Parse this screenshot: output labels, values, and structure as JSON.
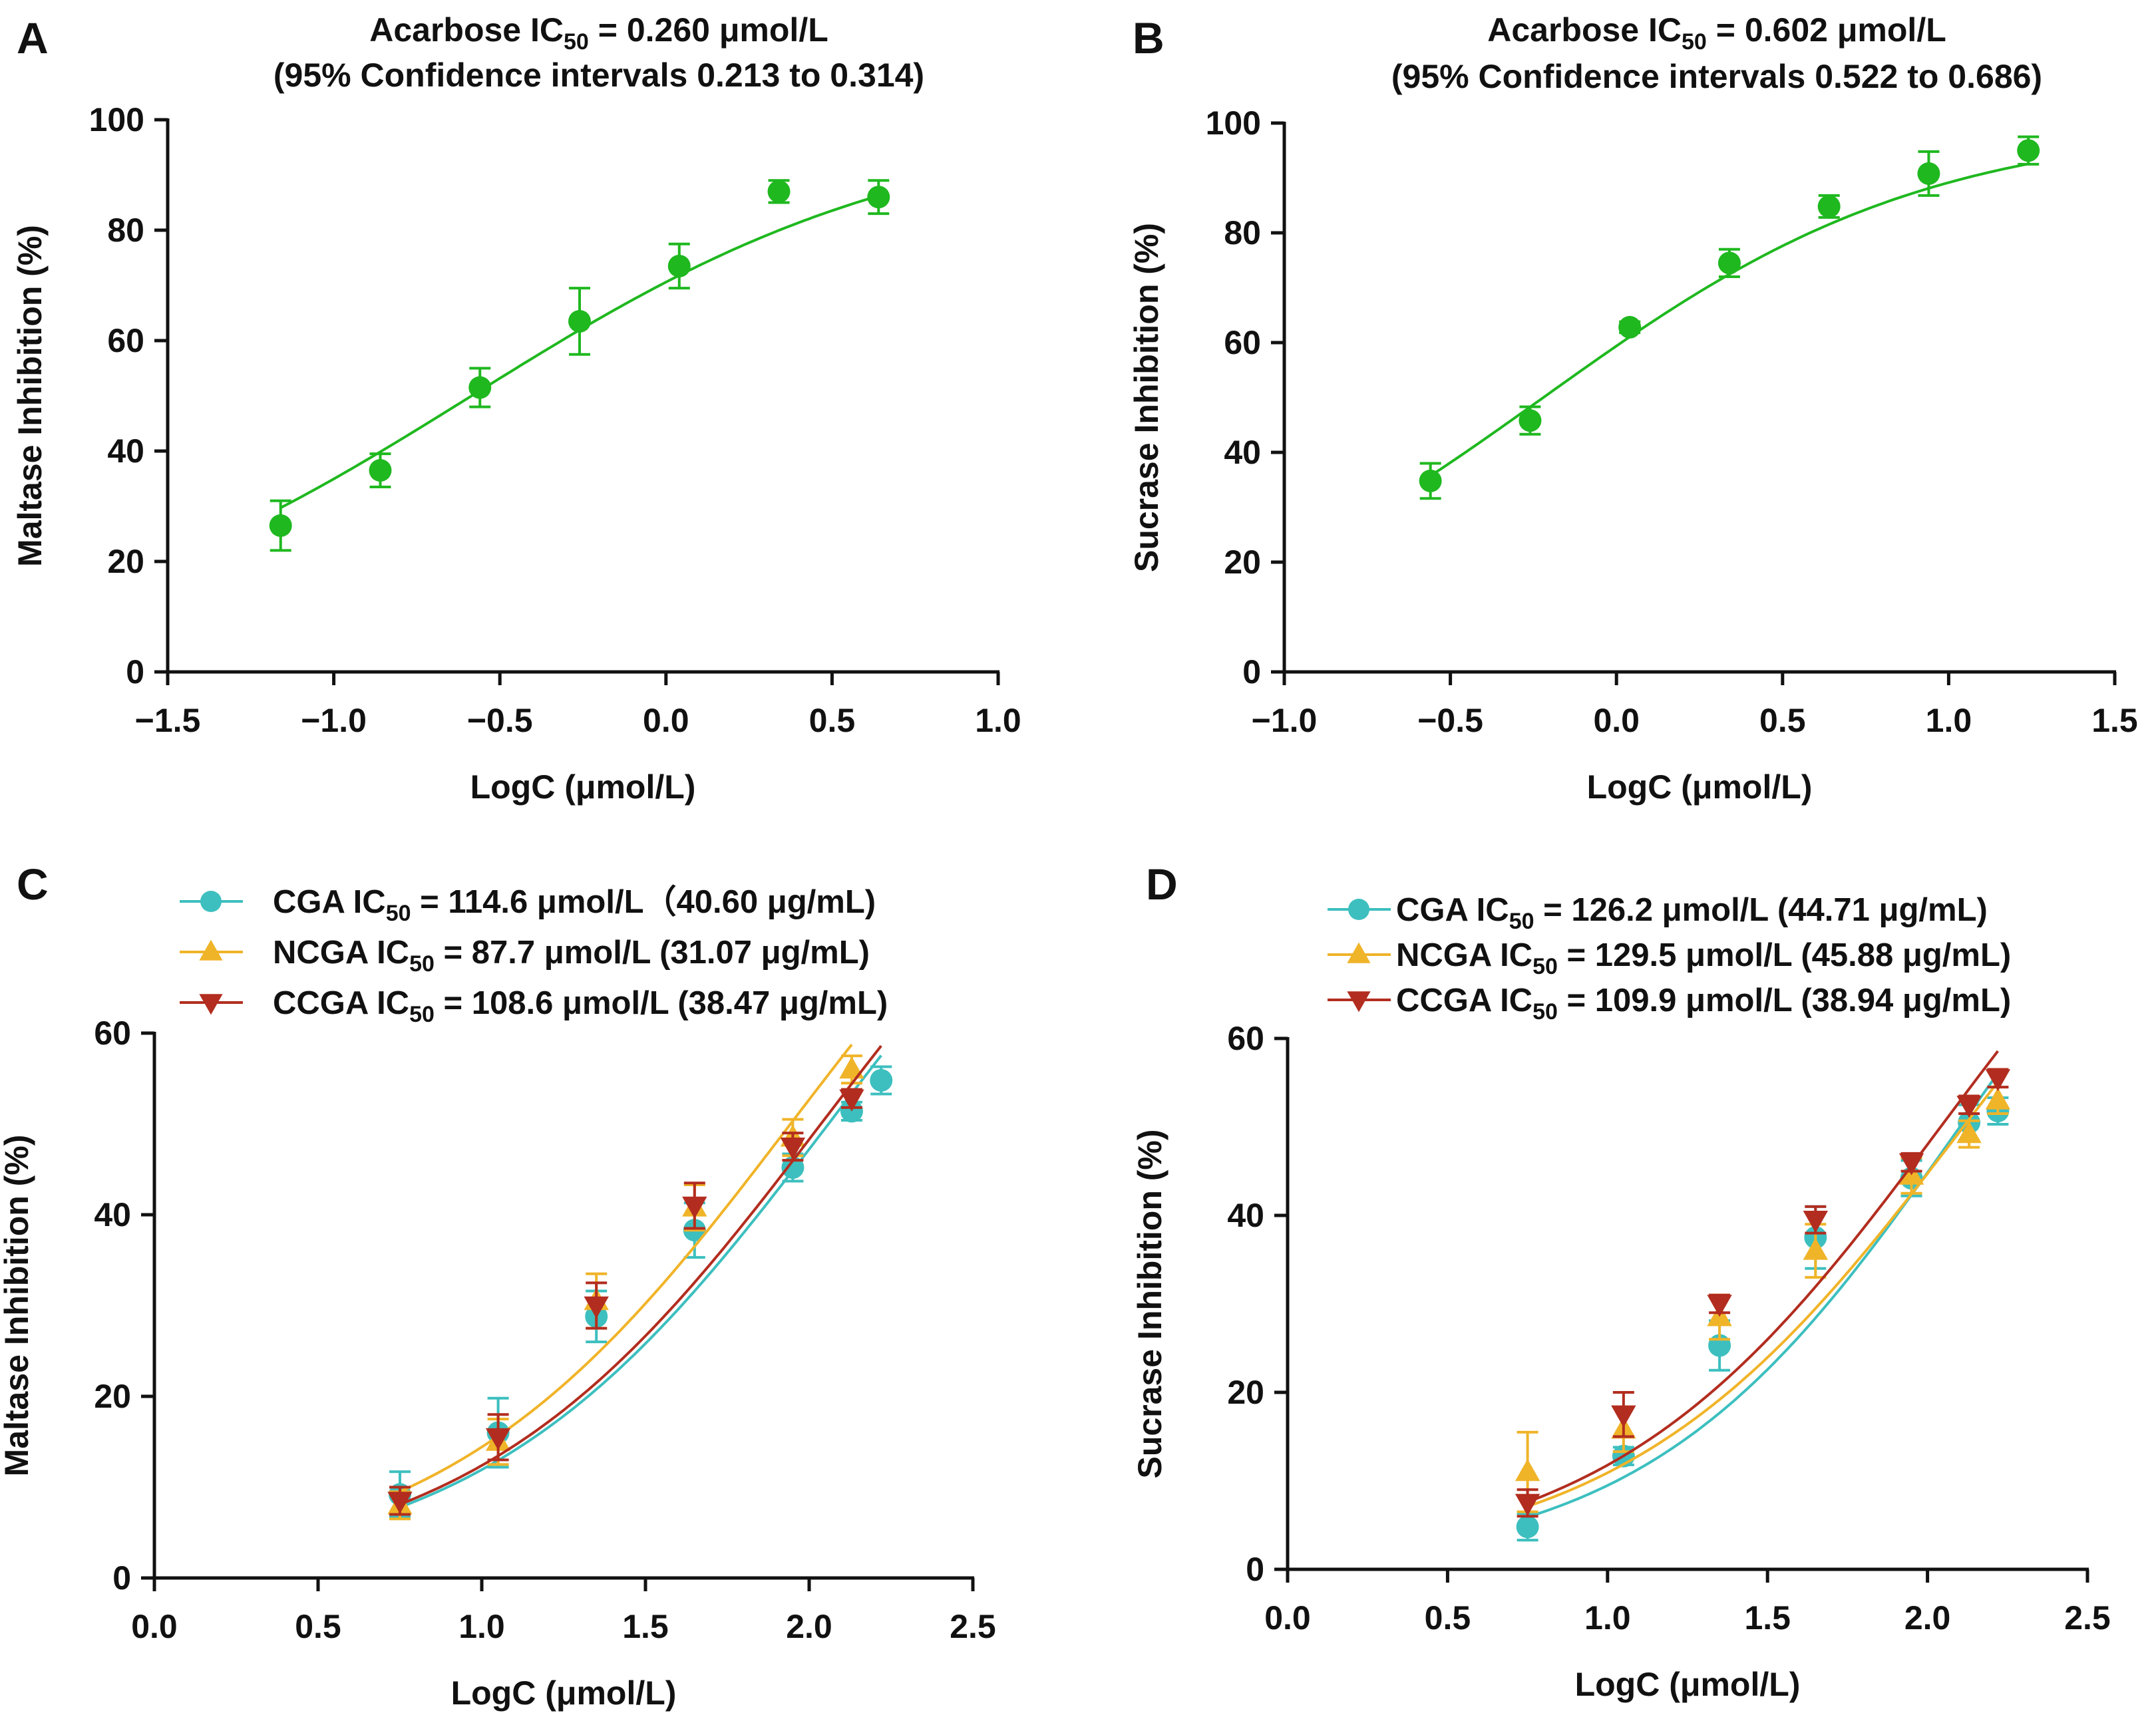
{
  "chart_data": [
    {
      "panel": "A",
      "type": "scatter",
      "title_line1_prefix": "Acarbose IC",
      "title_sub": "50",
      "title_line1_suffix": " = 0.260 μmol/L",
      "title_line2": "(95% Confidence intervals  0.213 to 0.314)",
      "xlabel": "LogC (μmol/L)",
      "ylabel": "Maltase Inhibition (%)",
      "xlim": [
        -1.5,
        1.0
      ],
      "ylim": [
        0,
        100
      ],
      "xticks": [
        -1.5,
        -1.0,
        -0.5,
        0.0,
        0.5,
        1.0
      ],
      "xtick_labels": [
        "−1.5",
        "−1.0",
        "−0.5",
        "0.0",
        "0.5",
        "1.0"
      ],
      "yticks": [
        0,
        20,
        40,
        60,
        80,
        100
      ],
      "ytick_labels": [
        "0",
        "20",
        "40",
        "60",
        "80",
        "100"
      ],
      "series": [
        {
          "name": "Acarbose",
          "color": "#1fb81f",
          "marker": "circle",
          "x": [
            -1.16,
            -0.86,
            -0.56,
            -0.26,
            0.04,
            0.34,
            0.64
          ],
          "y": [
            26.5,
            36.5,
            51.5,
            63.5,
            73.5,
            87.0,
            86.0
          ],
          "err": [
            4.5,
            3.0,
            3.5,
            6.0,
            4.0,
            2.0,
            3.0
          ],
          "fit": {
            "bottom": 0,
            "top": 100,
            "logIC50": -0.585,
            "hill": 0.65,
            "xrange": [
              -1.16,
              0.64
            ]
          }
        }
      ]
    },
    {
      "panel": "B",
      "type": "scatter",
      "title_line1_prefix": "Acarbose IC",
      "title_sub": "50",
      "title_line1_suffix": " = 0.602 μmol/L",
      "title_line2": "(95% Confidence intervals  0.522 to 0.686)",
      "xlabel": "LogC (μmol/L)",
      "ylabel": "Sucrase Inhibition (%)",
      "xlim": [
        -1.0,
        1.5
      ],
      "ylim": [
        0,
        100
      ],
      "xticks": [
        -1.0,
        -0.5,
        0.0,
        0.5,
        1.0,
        1.5
      ],
      "xtick_labels": [
        "−1.0",
        "−0.5",
        "0.0",
        "0.5",
        "1.0",
        "1.5"
      ],
      "yticks": [
        0,
        20,
        40,
        60,
        80,
        100
      ],
      "ytick_labels": [
        "0",
        "20",
        "40",
        "60",
        "80",
        "100"
      ],
      "series": [
        {
          "name": "Acarbose",
          "color": "#1fb81f",
          "marker": "circle",
          "x": [
            -0.56,
            -0.26,
            0.04,
            0.34,
            0.64,
            0.94,
            1.24
          ],
          "y": [
            34.8,
            45.8,
            62.8,
            74.5,
            84.8,
            90.8,
            95.0
          ],
          "err": [
            3.2,
            2.5,
            1.0,
            2.5,
            2.0,
            4.0,
            2.5
          ],
          "fit": {
            "bottom": 0,
            "top": 100,
            "logIC50": -0.22,
            "hill": 0.75,
            "xrange": [
              -0.56,
              1.24
            ]
          }
        }
      ]
    },
    {
      "panel": "C",
      "type": "scatter",
      "xlabel": "LogC (μmol/L)",
      "ylabel": "Maltase Inhibition (%)",
      "xlim": [
        0,
        2.5
      ],
      "ylim": [
        0,
        60
      ],
      "xticks": [
        0.0,
        0.5,
        1.0,
        1.5,
        2.0,
        2.5
      ],
      "xtick_labels": [
        "0.0",
        "0.5",
        "1.0",
        "1.5",
        "2.0",
        "2.5"
      ],
      "yticks": [
        0,
        20,
        40,
        60
      ],
      "ytick_labels": [
        "0",
        "20",
        "40",
        "60"
      ],
      "series": [
        {
          "name": "CGA",
          "legend_prefix": "CGA IC",
          "legend_sub": "50",
          "legend_suffix": " = 114.6 μmol/L（40.60 μg/mL)",
          "color": "#3dbfbf",
          "marker": "circle",
          "x": [
            0.75,
            1.05,
            1.35,
            1.65,
            1.95,
            2.13,
            2.22
          ],
          "y": [
            9.2,
            16.0,
            28.8,
            38.3,
            45.2,
            51.4,
            54.8
          ],
          "err": [
            2.5,
            3.8,
            2.8,
            3.0,
            1.5,
            1.0,
            1.5
          ],
          "fit": {
            "bottom": 0,
            "top": 100,
            "logIC50": 2.059,
            "hill": 0.82,
            "xrange": [
              0.75,
              2.22
            ]
          }
        },
        {
          "name": "NCGA",
          "legend_prefix": "NCGA IC",
          "legend_sub": "50",
          "legend_suffix": " = 87.7 μmol/L (31.07 μg/mL)",
          "color": "#f0b429",
          "marker": "triangle-up",
          "x": [
            0.75,
            1.05,
            1.35,
            1.65,
            1.95,
            2.13
          ],
          "y": [
            8.0,
            15.0,
            30.5,
            40.8,
            48.5,
            56.0
          ],
          "err": [
            1.5,
            2.5,
            3.0,
            2.5,
            2.0,
            1.5
          ],
          "fit": {
            "bottom": 0,
            "top": 100,
            "logIC50": 1.943,
            "hill": 0.82,
            "xrange": [
              0.75,
              2.13
            ]
          }
        },
        {
          "name": "CCGA",
          "legend_prefix": "CCGA IC",
          "legend_sub": "50",
          "legend_suffix": " = 108.6 μmol/L (38.47 μg/mL)",
          "color": "#b22d1f",
          "marker": "triangle-down",
          "x": [
            0.75,
            1.05,
            1.35,
            1.65,
            1.95,
            2.13
          ],
          "y": [
            8.5,
            15.5,
            30.0,
            41.0,
            47.5,
            52.8
          ],
          "err": [
            1.5,
            2.5,
            2.5,
            2.5,
            1.5,
            1.0
          ],
          "fit": {
            "bottom": 0,
            "top": 100,
            "logIC50": 2.036,
            "hill": 0.82,
            "xrange": [
              0.75,
              2.22
            ]
          }
        }
      ]
    },
    {
      "panel": "D",
      "type": "scatter",
      "xlabel": "LogC (μmol/L)",
      "ylabel": "Sucrase Inhibition (%)",
      "xlim": [
        0,
        2.5
      ],
      "ylim": [
        0,
        60
      ],
      "xticks": [
        0.0,
        0.5,
        1.0,
        1.5,
        2.0,
        2.5
      ],
      "xtick_labels": [
        "0.0",
        "0.5",
        "1.0",
        "1.5",
        "2.0",
        "2.5"
      ],
      "yticks": [
        0,
        20,
        40,
        60
      ],
      "ytick_labels": [
        "0",
        "20",
        "40",
        "60"
      ],
      "series": [
        {
          "name": "CGA",
          "legend_prefix": "CGA IC",
          "legend_sub": "50",
          "legend_suffix": " = 126.2 μmol/L (44.71 μg/mL)",
          "color": "#3dbfbf",
          "marker": "circle",
          "x": [
            0.75,
            1.05,
            1.35,
            1.65,
            1.95,
            2.13,
            2.22
          ],
          "y": [
            4.8,
            12.8,
            25.3,
            37.5,
            44.2,
            50.5,
            51.8
          ],
          "err": [
            1.5,
            1.0,
            2.8,
            3.5,
            2.0,
            2.0,
            1.5
          ],
          "fit": {
            "bottom": 0,
            "top": 100,
            "logIC50": 2.101,
            "hill": 0.89,
            "xrange": [
              0.75,
              2.22
            ]
          }
        },
        {
          "name": "NCGA",
          "legend_prefix": "NCGA IC",
          "legend_sub": "50",
          "legend_suffix": " = 129.5 μmol/L (45.88 μg/mL)",
          "color": "#f0b429",
          "marker": "triangle-up",
          "x": [
            0.75,
            1.05,
            1.35,
            1.65,
            1.95,
            2.13,
            2.22
          ],
          "y": [
            11.0,
            15.8,
            28.5,
            36.0,
            44.5,
            49.2,
            53.0
          ],
          "err": [
            4.5,
            2.5,
            2.5,
            3.0,
            2.0,
            1.5,
            1.5
          ],
          "fit": {
            "bottom": 0,
            "top": 100,
            "logIC50": 2.112,
            "hill": 0.82,
            "xrange": [
              0.75,
              2.22
            ]
          }
        },
        {
          "name": "CCGA",
          "legend_prefix": "CCGA IC",
          "legend_sub": "50",
          "legend_suffix": " = 109.9 μmol/L (38.94 μg/mL)",
          "color": "#b22d1f",
          "marker": "triangle-down",
          "x": [
            0.75,
            1.05,
            1.35,
            1.65,
            1.95,
            2.13,
            2.22
          ],
          "y": [
            7.5,
            17.5,
            30.0,
            39.5,
            46.0,
            52.5,
            55.5
          ],
          "err": [
            1.5,
            2.5,
            1.0,
            1.5,
            1.0,
            1.0,
            1.0
          ],
          "fit": {
            "bottom": 0,
            "top": 100,
            "logIC50": 2.041,
            "hill": 0.84,
            "xrange": [
              0.75,
              2.22
            ]
          }
        }
      ]
    }
  ]
}
